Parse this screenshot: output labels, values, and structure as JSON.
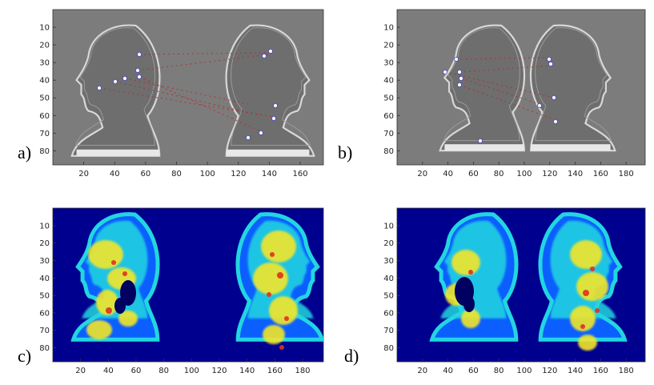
{
  "figure": {
    "panels": [
      {
        "id": "a",
        "label": "a)",
        "type": "grayscale",
        "xticks": [
          "20",
          "40",
          "60",
          "80",
          "100",
          "120",
          "140",
          "160"
        ],
        "yticks": [
          "10",
          "20",
          "30",
          "40",
          "50",
          "60",
          "70",
          "80"
        ]
      },
      {
        "id": "b",
        "label": "b)",
        "type": "grayscale",
        "xticks": [
          "20",
          "40",
          "60",
          "80",
          "100",
          "120",
          "140",
          "160",
          "180"
        ],
        "yticks": [
          "10",
          "20",
          "30",
          "40",
          "50",
          "60",
          "70",
          "80"
        ]
      },
      {
        "id": "c",
        "label": "c)",
        "type": "heatmap",
        "xticks": [
          "20",
          "40",
          "60",
          "80",
          "100",
          "120",
          "140",
          "160",
          "180"
        ],
        "yticks": [
          "10",
          "20",
          "30",
          "40",
          "50",
          "60",
          "70",
          "80"
        ]
      },
      {
        "id": "d",
        "label": "d)",
        "type": "heatmap",
        "xticks": [
          "20",
          "40",
          "60",
          "80",
          "100",
          "120",
          "140",
          "160",
          "180"
        ],
        "yticks": [
          "10",
          "20",
          "30",
          "40",
          "50",
          "60",
          "70",
          "80"
        ]
      }
    ],
    "colors": {
      "gray_bg": "#7c7c7c",
      "silhouette_edge": "#d8d8d8",
      "match_line": "#b03030",
      "keypoint": "#ffffff",
      "heat_bg": "#00008f",
      "heat_low": "#0b5fff",
      "heat_mid": "#22d6e0",
      "heat_high": "#f2e62a",
      "heat_peak": "#e0301e"
    }
  }
}
